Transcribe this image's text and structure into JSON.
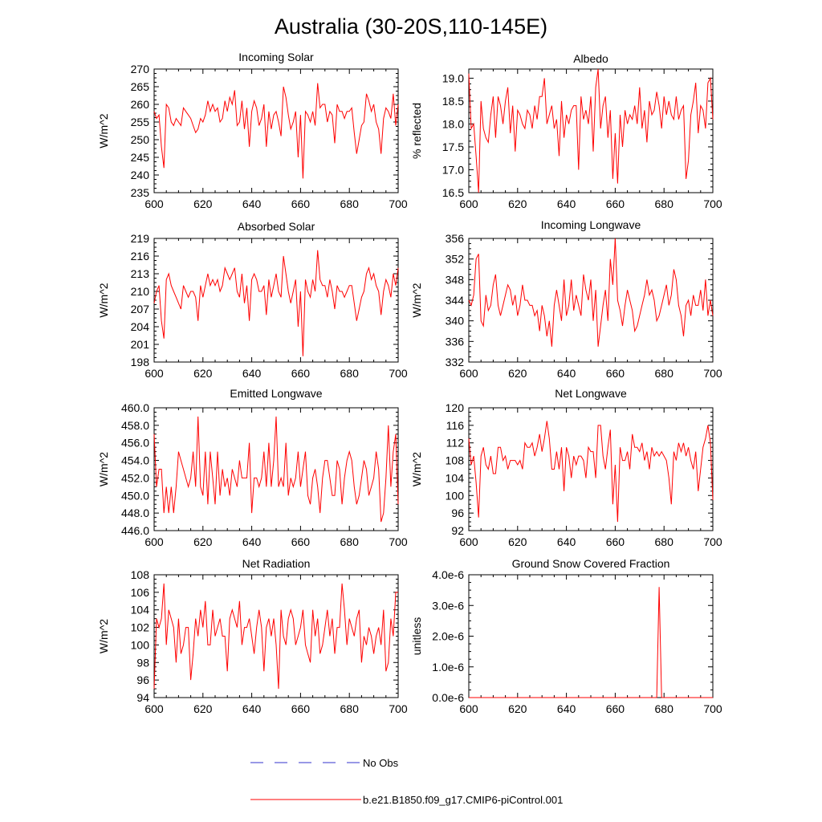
{
  "title": "Australia (30-20S,110-145E)",
  "legend": [
    {
      "label": "No Obs",
      "color": "#3333cc",
      "dashed": true
    },
    {
      "label": "b.e21.B1850.f09_g17.CMIP6-piControl.001",
      "color": "#ff0000",
      "dashed": false
    }
  ],
  "chart_data": [
    {
      "type": "line",
      "title": "Incoming Solar",
      "ylabel": "W/m^2",
      "xlim": [
        600,
        700
      ],
      "xticks": [
        600,
        620,
        640,
        660,
        680,
        700
      ],
      "ylim": [
        235,
        270
      ],
      "yticks": [
        235,
        240,
        245,
        250,
        255,
        260,
        265,
        270
      ],
      "ytick_labels": [
        "235",
        "240",
        "245",
        "250",
        "255",
        "260",
        "265",
        "270"
      ],
      "series": [
        {
          "color": "#ff0000",
          "values": [
            258,
            256,
            257,
            248,
            242,
            260,
            259,
            255,
            254,
            256,
            255,
            254,
            259,
            258,
            257,
            256,
            254,
            252,
            253,
            256,
            255,
            257,
            261,
            258,
            260,
            258,
            259,
            255,
            256,
            261,
            258,
            262,
            260,
            264,
            254,
            255,
            261,
            253,
            259,
            248,
            258,
            261,
            259,
            254,
            256,
            260,
            248,
            258,
            253,
            257,
            258,
            255,
            251,
            265,
            262,
            257,
            253,
            255,
            258,
            245,
            257,
            239,
            258,
            257,
            255,
            258,
            254,
            266,
            259,
            260,
            260,
            255,
            258,
            257,
            249,
            260,
            258,
            258,
            256,
            258,
            258,
            259,
            252,
            246,
            250,
            254,
            255,
            263,
            261,
            258,
            260,
            255,
            253,
            246,
            256,
            259,
            258,
            256,
            263,
            254,
            260
          ]
        }
      ]
    },
    {
      "type": "line",
      "title": "Albedo",
      "ylabel": "% reflected",
      "xlim": [
        600,
        700
      ],
      "xticks": [
        600,
        620,
        640,
        660,
        680,
        700
      ],
      "ylim": [
        16.5,
        19.2
      ],
      "yticks": [
        16.5,
        17.0,
        17.5,
        18.0,
        18.5,
        19.0
      ],
      "ytick_labels": [
        "16.5",
        "17.0",
        "17.5",
        "18.0",
        "18.5",
        "19.0"
      ],
      "series": [
        {
          "color": "#ff0000",
          "values": [
            19.1,
            17.9,
            18.0,
            17.3,
            16.5,
            18.5,
            17.9,
            17.7,
            17.6,
            18.2,
            18.6,
            17.7,
            18.6,
            18.4,
            18.0,
            18.5,
            18.8,
            17.8,
            18.4,
            17.4,
            18.3,
            18.2,
            18.0,
            17.9,
            18.3,
            18.2,
            17.9,
            18.4,
            18.1,
            18.6,
            18.6,
            19.0,
            18.0,
            18.2,
            18.4,
            17.9,
            18.1,
            17.3,
            18.5,
            17.7,
            18.2,
            18.0,
            18.3,
            18.4,
            18.4,
            17.0,
            18.6,
            18.1,
            18.3,
            18.0,
            18.6,
            17.4,
            18.8,
            19.2,
            17.9,
            18.4,
            18.6,
            17.7,
            18.3,
            16.8,
            17.8,
            16.7,
            18.2,
            17.5,
            18.3,
            18.0,
            18.2,
            18.1,
            18.4,
            18.0,
            18.8,
            17.9,
            18.3,
            17.6,
            18.5,
            18.2,
            18.3,
            18.7,
            18.4,
            17.9,
            18.6,
            18.2,
            18.5,
            18.2,
            18.1,
            18.6,
            18.1,
            18.3,
            18.4,
            16.8,
            17.2,
            18.2,
            18.5,
            18.9,
            17.8,
            18.4,
            18.3,
            17.9,
            18.9,
            19.0,
            18.1
          ]
        }
      ]
    },
    {
      "type": "line",
      "title": "Absorbed Solar",
      "ylabel": "W/m^2",
      "xlim": [
        600,
        700
      ],
      "xticks": [
        600,
        620,
        640,
        660,
        680,
        700
      ],
      "ylim": [
        198,
        219
      ],
      "yticks": [
        198,
        201,
        204,
        207,
        210,
        213,
        216,
        219
      ],
      "ytick_labels": [
        "198",
        "201",
        "204",
        "207",
        "210",
        "213",
        "216",
        "219"
      ],
      "series": [
        {
          "color": "#ff0000",
          "values": [
            208,
            210,
            211,
            205,
            202,
            212,
            213,
            211,
            210,
            209,
            208,
            207,
            211,
            210,
            209,
            210,
            210,
            209,
            205,
            211,
            209,
            211,
            213,
            211,
            212,
            211,
            212,
            210,
            211,
            214,
            213,
            212,
            213,
            214,
            210,
            209,
            213,
            208,
            211,
            205,
            212,
            213,
            212,
            210,
            210,
            211,
            206,
            212,
            209,
            211,
            213,
            210,
            209,
            216,
            213,
            210,
            208,
            210,
            212,
            204,
            210,
            199,
            212,
            210,
            209,
            212,
            210,
            217,
            212,
            211,
            211,
            209,
            212,
            210,
            207,
            211,
            210,
            210,
            209,
            210,
            211,
            211,
            208,
            205,
            207,
            209,
            210,
            213,
            214,
            212,
            213,
            211,
            210,
            206,
            210,
            212,
            211,
            209,
            213,
            211,
            214
          ]
        }
      ]
    },
    {
      "type": "line",
      "title": "Incoming Longwave",
      "ylabel": "W/m^2",
      "xlim": [
        600,
        700
      ],
      "xticks": [
        600,
        620,
        640,
        660,
        680,
        700
      ],
      "ylim": [
        332,
        356
      ],
      "yticks": [
        332,
        336,
        340,
        344,
        348,
        352,
        356
      ],
      "ytick_labels": [
        "332",
        "336",
        "340",
        "344",
        "348",
        "352",
        "356"
      ],
      "series": [
        {
          "color": "#ff0000",
          "values": [
            344,
            343,
            345,
            352,
            353,
            340,
            339,
            345,
            342,
            343,
            347,
            349,
            343,
            341,
            343,
            345,
            347,
            346,
            343,
            345,
            341,
            343,
            347,
            344,
            344,
            343,
            343,
            341,
            342,
            338,
            343,
            341,
            337,
            340,
            335,
            343,
            346,
            343,
            340,
            348,
            341,
            343,
            348,
            342,
            345,
            343,
            341,
            349,
            346,
            344,
            348,
            340,
            346,
            335,
            339,
            343,
            346,
            340,
            352,
            347,
            356,
            344,
            342,
            339,
            343,
            346,
            344,
            342,
            338,
            339,
            341,
            343,
            345,
            348,
            345,
            346,
            344,
            340,
            341,
            343,
            345,
            347,
            343,
            345,
            350,
            348,
            343,
            341,
            337,
            343,
            344,
            341,
            345,
            343,
            343,
            346,
            342,
            348,
            341,
            344,
            341
          ]
        }
      ]
    },
    {
      "type": "line",
      "title": "Emitted Longwave",
      "ylabel": "W/m^2",
      "xlim": [
        600,
        700
      ],
      "xticks": [
        600,
        620,
        640,
        660,
        680,
        700
      ],
      "ylim": [
        446,
        460
      ],
      "yticks": [
        446,
        448,
        450,
        452,
        454,
        456,
        458,
        460
      ],
      "ytick_labels": [
        "446.0",
        "448.0",
        "450.0",
        "452.0",
        "454.0",
        "456.0",
        "458.0",
        "460.0"
      ],
      "series": [
        {
          "color": "#ff0000",
          "values": [
            457,
            451,
            453,
            453,
            448,
            451,
            448,
            451,
            448,
            451,
            455,
            454,
            453,
            452,
            451,
            452,
            455,
            451,
            459,
            451,
            450,
            455,
            449,
            455,
            452,
            449,
            455,
            450,
            453,
            451,
            452,
            450,
            453,
            452,
            451,
            454,
            452,
            452,
            452,
            456,
            448,
            452,
            452,
            451,
            452,
            455,
            451,
            456,
            451,
            454,
            459,
            451,
            452,
            451,
            456,
            450,
            452,
            451,
            452,
            455,
            451,
            453,
            455,
            450,
            449,
            452,
            453,
            451,
            448,
            452,
            454,
            454,
            452,
            450,
            450,
            454,
            453,
            449,
            452,
            454,
            455,
            454,
            451,
            449,
            450,
            452,
            454,
            453,
            450,
            451,
            452,
            455,
            453,
            447,
            448,
            452,
            458,
            451,
            455,
            457,
            449
          ]
        }
      ]
    },
    {
      "type": "line",
      "title": "Net Longwave",
      "ylabel": "W/m^2",
      "xlim": [
        600,
        700
      ],
      "xticks": [
        600,
        620,
        640,
        660,
        680,
        700
      ],
      "ylim": [
        92,
        120
      ],
      "yticks": [
        92,
        96,
        100,
        104,
        108,
        112,
        116,
        120
      ],
      "ytick_labels": [
        "92",
        "96",
        "100",
        "104",
        "108",
        "112",
        "116",
        "120"
      ],
      "series": [
        {
          "color": "#ff0000",
          "values": [
            113,
            107,
            109,
            103,
            95,
            109,
            111,
            107,
            106,
            109,
            105,
            105,
            111,
            111,
            108,
            109,
            106,
            108,
            108,
            108,
            107,
            108,
            106,
            112,
            111,
            111,
            112,
            109,
            111,
            114,
            110,
            113,
            117,
            113,
            106,
            106,
            110,
            106,
            111,
            101,
            111,
            109,
            104,
            109,
            107,
            109,
            109,
            108,
            104,
            111,
            110,
            110,
            104,
            116,
            116,
            109,
            106,
            111,
            115,
            98,
            107,
            94,
            111,
            108,
            108,
            110,
            106,
            114,
            111,
            111,
            110,
            112,
            108,
            110,
            106,
            111,
            109,
            110,
            109,
            110,
            109,
            108,
            104,
            98,
            110,
            108,
            112,
            110,
            112,
            109,
            111,
            108,
            106,
            110,
            101,
            106,
            111,
            113,
            116,
            112,
            99
          ]
        }
      ]
    },
    {
      "type": "line",
      "title": "Net Radiation",
      "ylabel": "W/m^2",
      "xlim": [
        600,
        700
      ],
      "xticks": [
        600,
        620,
        640,
        660,
        680,
        700
      ],
      "ylim": [
        94,
        108
      ],
      "yticks": [
        94,
        96,
        98,
        100,
        102,
        104,
        106,
        108
      ],
      "ytick_labels": [
        "94",
        "96",
        "98",
        "100",
        "102",
        "104",
        "106",
        "108"
      ],
      "series": [
        {
          "color": "#ff0000",
          "values": [
            95,
            103,
            102,
            103,
            107,
            100,
            104,
            103,
            102,
            98,
            103,
            99,
            100,
            102,
            102,
            96,
            99,
            103,
            101,
            104,
            102,
            105,
            100,
            100,
            104,
            101,
            102,
            103,
            101,
            101,
            97,
            103,
            104,
            103,
            102,
            105,
            100,
            102,
            102,
            103,
            101,
            99,
            102,
            104,
            102,
            97,
            102,
            103,
            101,
            103,
            100,
            95,
            104,
            101,
            100,
            103,
            104,
            103,
            100,
            101,
            102,
            104,
            100,
            99,
            98,
            104,
            101,
            103,
            99,
            100,
            102,
            104,
            101,
            103,
            99,
            102,
            102,
            107,
            104,
            100,
            103,
            102,
            101,
            103,
            104,
            98,
            101,
            100,
            102,
            101,
            99,
            101,
            102,
            100,
            104,
            97,
            98,
            103,
            101,
            106,
            106
          ]
        }
      ]
    },
    {
      "type": "line",
      "title": "Ground Snow Covered Fraction",
      "ylabel": "unitless",
      "xlim": [
        600,
        700
      ],
      "xticks": [
        600,
        620,
        640,
        660,
        680,
        700
      ],
      "ylim": [
        0,
        4e-06
      ],
      "yticks": [
        0,
        1e-06,
        2e-06,
        3e-06,
        4e-06
      ],
      "ytick_labels": [
        "0.0e-6",
        "1.0e-6",
        "2.0e-6",
        "3.0e-6",
        "4.0e-6"
      ],
      "series": [
        {
          "color": "#ff0000",
          "values": [
            0,
            0,
            0,
            0,
            0,
            0,
            0,
            0,
            0,
            0,
            0,
            0,
            0,
            0,
            0,
            0,
            0,
            0,
            0,
            0,
            0,
            0,
            0,
            0,
            0,
            0,
            0,
            0,
            0,
            0,
            0,
            0,
            0,
            0,
            0,
            0,
            0,
            0,
            0,
            0,
            0,
            0,
            0,
            0,
            0,
            0,
            0,
            0,
            0,
            0,
            0,
            0,
            0,
            0,
            0,
            0,
            0,
            0,
            0,
            0,
            0,
            0,
            0,
            0,
            0,
            0,
            0,
            0,
            0,
            0,
            0,
            0,
            0,
            0,
            0,
            0,
            0,
            0,
            3.6e-06,
            0,
            0,
            0,
            0,
            0,
            0,
            0,
            0,
            0,
            0,
            0,
            0,
            0,
            0,
            0,
            0,
            0,
            0,
            0,
            0,
            0,
            0
          ]
        }
      ]
    }
  ]
}
